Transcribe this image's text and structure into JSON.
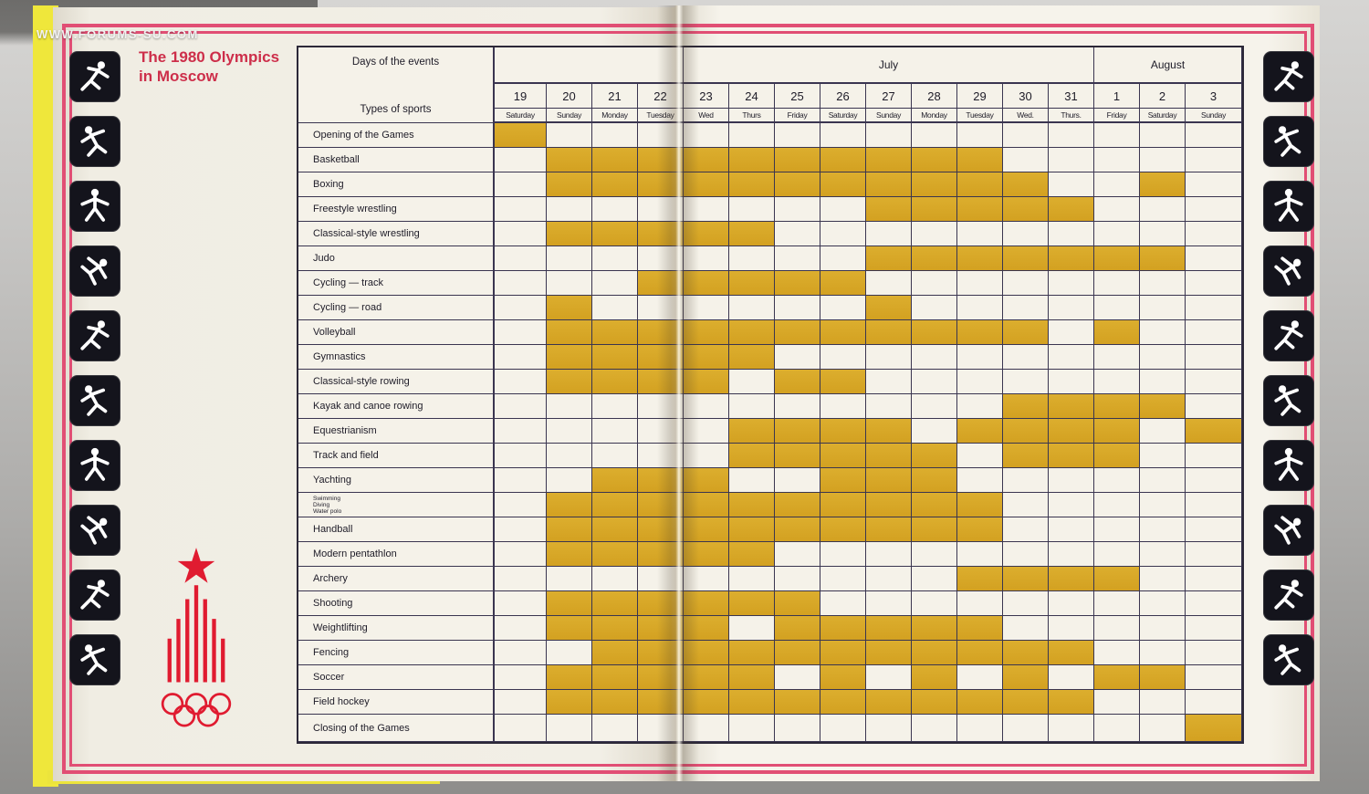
{
  "watermark": "WWW.FORUMS-SU.COM",
  "page": {
    "title_line1": "The 1980 Olympics",
    "title_line2": "in Moscow"
  },
  "colors": {
    "gold_cell": "#d7a527",
    "pink_frame": "#e14e74",
    "title_red": "#cd2e4a",
    "logo_red": "#e01b30",
    "page_cream": "#f5f2e9",
    "grid_line": "#3a3550",
    "yellow_edge": "#efe73b"
  },
  "table": {
    "corner": {
      "line1": "Days of the events",
      "line2": "Types of sports"
    },
    "months": [
      {
        "label": "",
        "span": 4
      },
      {
        "label": "July",
        "span": 9
      },
      {
        "label": "August",
        "span": 3
      }
    ],
    "columns": [
      {
        "date": "19",
        "day": "Saturday"
      },
      {
        "date": "20",
        "day": "Sunday"
      },
      {
        "date": "21",
        "day": "Monday"
      },
      {
        "date": "22",
        "day": "Tuesday"
      },
      {
        "date": "23",
        "day": "Wed"
      },
      {
        "date": "24",
        "day": "Thurs"
      },
      {
        "date": "25",
        "day": "Friday"
      },
      {
        "date": "26",
        "day": "Saturday"
      },
      {
        "date": "27",
        "day": "Sunday"
      },
      {
        "date": "28",
        "day": "Monday"
      },
      {
        "date": "29",
        "day": "Tuesday"
      },
      {
        "date": "30",
        "day": "Wed."
      },
      {
        "date": "31",
        "day": "Thurs."
      },
      {
        "date": "1",
        "day": "Friday"
      },
      {
        "date": "2",
        "day": "Saturday"
      },
      {
        "date": "3",
        "day": "Sunday"
      }
    ],
    "rows": [
      {
        "label": "Opening of the Games",
        "filled": [
          0
        ]
      },
      {
        "label": "Basketball",
        "filled": [
          1,
          2,
          3,
          4,
          5,
          6,
          7,
          8,
          9,
          10
        ]
      },
      {
        "label": "Boxing",
        "filled": [
          1,
          2,
          3,
          4,
          5,
          6,
          7,
          8,
          9,
          10,
          11,
          14
        ]
      },
      {
        "label": "Freestyle wrestling",
        "filled": [
          8,
          9,
          10,
          11,
          12
        ]
      },
      {
        "label": "Classical-style wrestling",
        "filled": [
          1,
          2,
          3,
          4,
          5
        ]
      },
      {
        "label": "Judo",
        "filled": [
          8,
          9,
          10,
          11,
          12,
          13,
          14
        ]
      },
      {
        "label": "Cycling — track",
        "filled": [
          3,
          4,
          5,
          6,
          7
        ]
      },
      {
        "label": "Cycling — road",
        "filled": [
          1,
          8
        ]
      },
      {
        "label": "Volleyball",
        "filled": [
          1,
          2,
          3,
          4,
          5,
          6,
          7,
          8,
          9,
          10,
          11,
          13
        ]
      },
      {
        "label": "Gymnastics",
        "filled": [
          1,
          2,
          3,
          4,
          5
        ]
      },
      {
        "label": "Classical-style rowing",
        "filled": [
          1,
          2,
          3,
          4,
          6,
          7
        ]
      },
      {
        "label": "Kayak and canoe rowing",
        "filled": [
          11,
          12,
          13,
          14
        ]
      },
      {
        "label": "Equestrianism",
        "filled": [
          5,
          6,
          7,
          8,
          10,
          11,
          12,
          13,
          15
        ]
      },
      {
        "label": "Track and field",
        "filled": [
          5,
          6,
          7,
          8,
          9,
          11,
          12,
          13
        ]
      },
      {
        "label": "Yachting",
        "filled": [
          2,
          3,
          4,
          7,
          8,
          9
        ]
      },
      {
        "label": "",
        "label_lines": [
          "Swimming",
          "Diving",
          "Water polo"
        ],
        "filled": [
          1,
          2,
          3,
          4,
          5,
          6,
          7,
          8,
          9,
          10
        ]
      },
      {
        "label": "Handball",
        "filled": [
          1,
          2,
          3,
          4,
          5,
          6,
          7,
          8,
          9,
          10
        ]
      },
      {
        "label": "Modern pentathlon",
        "filled": [
          1,
          2,
          3,
          4,
          5
        ]
      },
      {
        "label": "Archery",
        "filled": [
          10,
          11,
          12,
          13
        ]
      },
      {
        "label": "Shooting",
        "filled": [
          1,
          2,
          3,
          4,
          5,
          6
        ]
      },
      {
        "label": "Weightlifting",
        "filled": [
          1,
          2,
          3,
          4,
          6,
          7,
          8,
          9,
          10
        ]
      },
      {
        "label": "Fencing",
        "filled": [
          2,
          3,
          4,
          5,
          6,
          7,
          8,
          9,
          10,
          11,
          12
        ]
      },
      {
        "label": "Soccer",
        "filled": [
          1,
          2,
          3,
          4,
          5,
          7,
          9,
          11,
          13,
          14
        ]
      },
      {
        "label": "Field hockey",
        "filled": [
          1,
          2,
          3,
          4,
          5,
          6,
          7,
          8,
          9,
          10,
          11,
          12
        ]
      },
      {
        "label": "Closing of the Games",
        "filled": [
          15
        ]
      }
    ]
  },
  "icons": {
    "left": [
      "gymnastics",
      "volleyball",
      "handball",
      "canoe",
      "archery",
      "weightlifting",
      "rowing",
      "fencing",
      "wrestling",
      "soccer"
    ],
    "right": [
      "basketball",
      "volleyball-spike",
      "water-polo",
      "boxing",
      "judo",
      "cycling",
      "equestrian",
      "swimming",
      "field-hockey",
      "running"
    ]
  },
  "logo": {
    "name": "moscow-1980-olympics-emblem"
  }
}
